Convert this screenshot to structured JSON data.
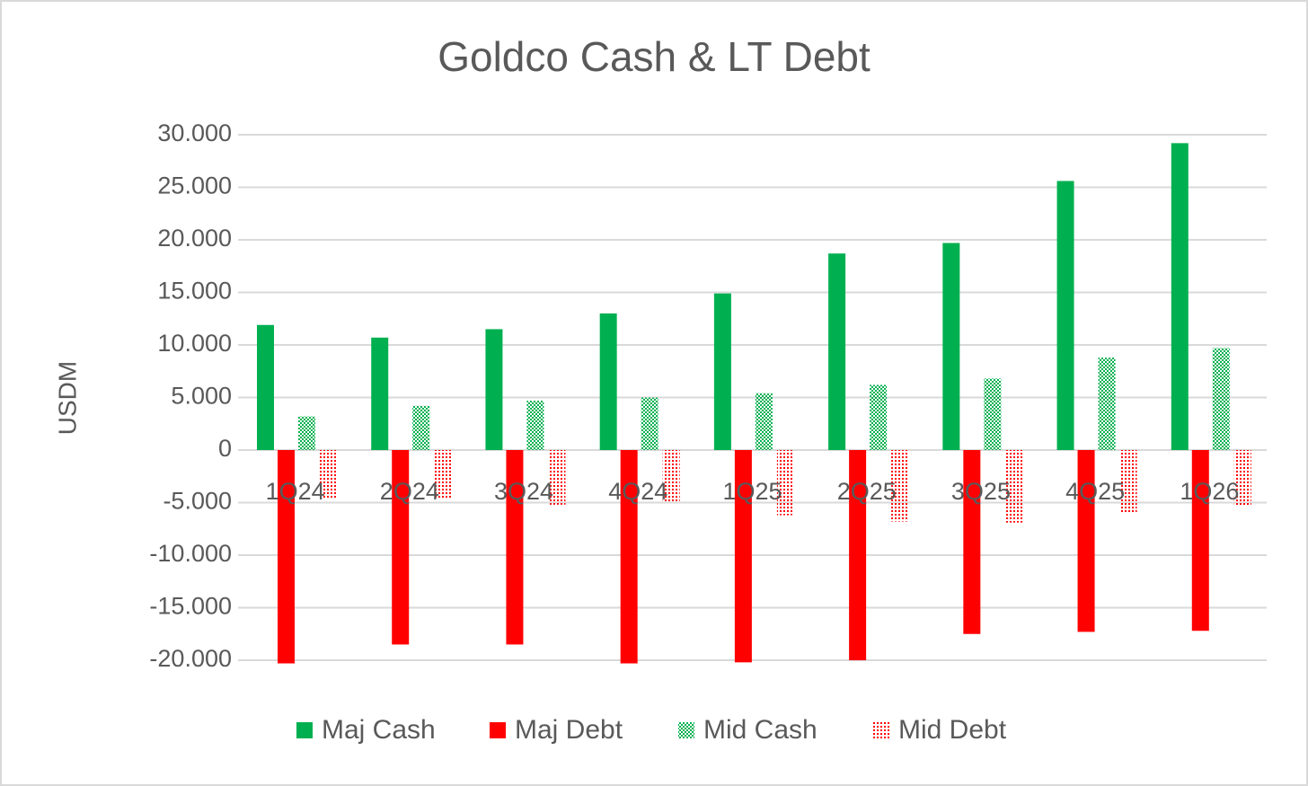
{
  "chart_data": {
    "type": "bar",
    "title": "Goldco  Cash & LT Debt",
    "y_label": "USDM",
    "categories": [
      "1Q24",
      "2Q24",
      "3Q24",
      "4Q24",
      "1Q25",
      "2Q25",
      "3Q25",
      "4Q25",
      "1Q26"
    ],
    "series": [
      {
        "name": "Maj Cash",
        "color": "#00b050",
        "pattern": "solid",
        "values": [
          11900,
          10700,
          11500,
          13000,
          14900,
          18700,
          19700,
          25600,
          29200
        ]
      },
      {
        "name": "Maj Debt",
        "color": "#ff0000",
        "pattern": "solid",
        "values": [
          -20300,
          -18500,
          -18500,
          -20300,
          -20200,
          -20000,
          -17500,
          -17300,
          -17200
        ]
      },
      {
        "name": "Mid Cash",
        "color": "#00b050",
        "pattern": "checker",
        "values": [
          3200,
          4200,
          4700,
          5000,
          5400,
          6200,
          6800,
          8800,
          9700
        ]
      },
      {
        "name": "Mid Debt",
        "color": "#ff0000",
        "pattern": "dots",
        "values": [
          -4600,
          -4600,
          -5200,
          -5000,
          -6200,
          -6800,
          -6900,
          -6000,
          -5300
        ]
      }
    ],
    "ylim": [
      -20000,
      30000
    ],
    "yticks": [
      {
        "value": -20000,
        "label": "-20.000"
      },
      {
        "value": -15000,
        "label": "-15.000"
      },
      {
        "value": -10000,
        "label": "-10.000"
      },
      {
        "value": -5000,
        "label": "-5.000"
      },
      0,
      {
        "value": 5000,
        "label": "5.000"
      },
      {
        "value": 10000,
        "label": "10.000"
      },
      {
        "value": 15000,
        "label": "15.000"
      },
      {
        "value": 20000,
        "label": "20.000"
      },
      {
        "value": 25000,
        "label": "25.000"
      },
      {
        "value": 30000,
        "label": "30.000"
      }
    ],
    "grid": true,
    "legend": "bottom"
  }
}
